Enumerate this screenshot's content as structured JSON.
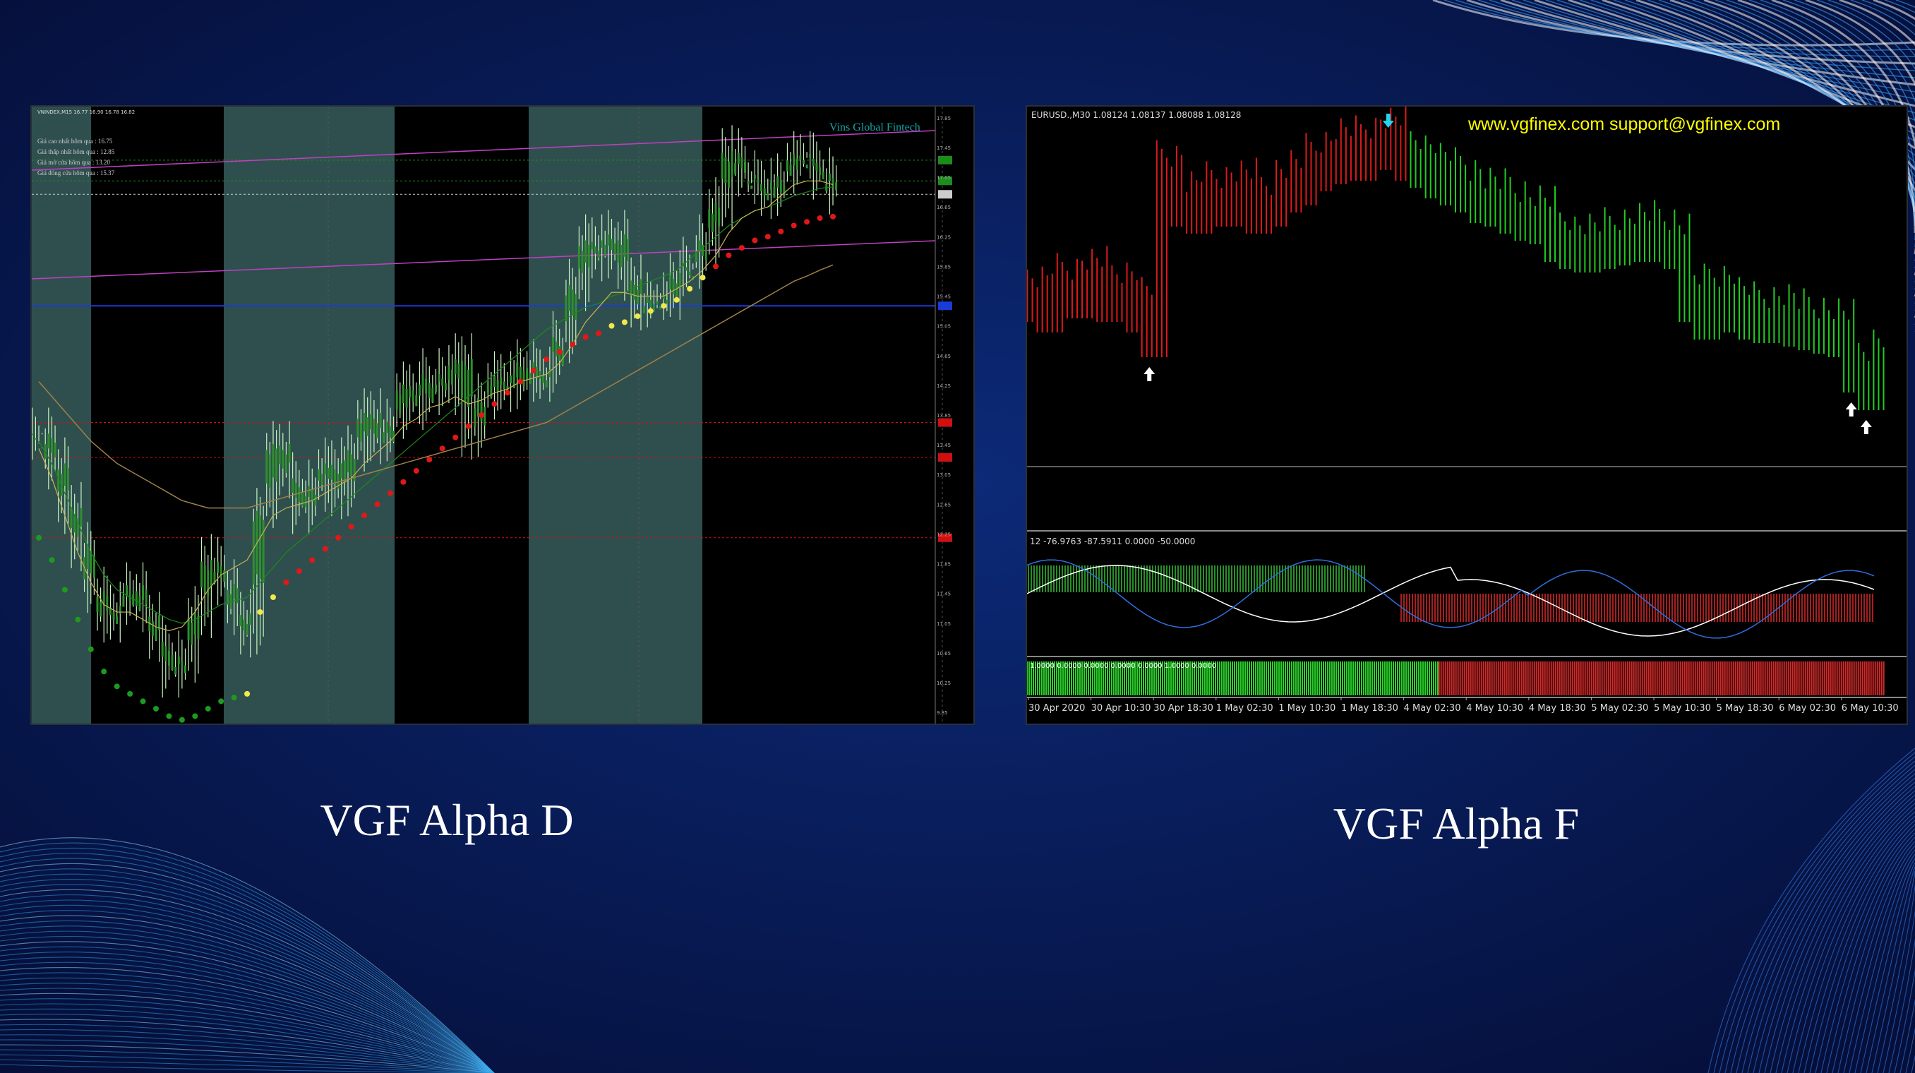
{
  "captions": {
    "left": "VGF Alpha D",
    "right": "VGF Alpha F"
  },
  "chart_data": [
    {
      "type": "line",
      "panel": "VGF Alpha D",
      "symbol_header": "VNINDEX,M15 16.77 16.90 16.78 16.82",
      "watermark": "Vins Global Fintech",
      "info_box": [
        "Giá cao nhất hôm qua : 16.75",
        "Giá thấp nhất hôm qua : 12.85",
        "Giá mở cửa hôm qua : 13.20",
        "Giá đóng cửa hôm qua : 15.37"
      ],
      "y_ticks": [
        "17.85",
        "17.45",
        "17.05",
        "16.65",
        "16.25",
        "15.85",
        "15.45",
        "15.05",
        "14.65",
        "14.25",
        "13.85",
        "13.45",
        "13.05",
        "12.65",
        "12.25",
        "11.85",
        "11.45",
        "11.05",
        "10.65",
        "10.25",
        "9.85"
      ],
      "ylim": [
        9.7,
        18.0
      ],
      "price_tags": [
        {
          "value": 17.28,
          "color": "#1c8c1c"
        },
        {
          "value": 17.0,
          "color": "#1c8c1c"
        },
        {
          "value": 16.82,
          "color": "#cccccc"
        },
        {
          "value": 15.32,
          "color": "#1a3bd6"
        },
        {
          "value": 13.75,
          "color": "#d01010"
        },
        {
          "value": 13.28,
          "color": "#d01010"
        },
        {
          "value": 12.2,
          "color": "#d01010"
        }
      ],
      "close_series": [
        13.6,
        13.2,
        12.6,
        12.1,
        11.5,
        11.1,
        11.3,
        11.6,
        11.2,
        10.8,
        10.4,
        10.6,
        11.2,
        11.9,
        11.6,
        11.2,
        10.9,
        12.6,
        13.5,
        13.0,
        12.6,
        12.9,
        13.2,
        12.8,
        13.4,
        13.9,
        13.5,
        13.8,
        14.3,
        14.0,
        14.4,
        14.2,
        14.6,
        13.6,
        14.1,
        14.4,
        14.2,
        14.6,
        14.3,
        14.5,
        14.9,
        15.6,
        16.2,
        16.0,
        16.3,
        15.7,
        15.3,
        15.5,
        15.4,
        15.8,
        15.9,
        16.2,
        16.7,
        17.4,
        17.1,
        17.0,
        16.8,
        17.1,
        17.4,
        17.3,
        17.1,
        16.9
      ],
      "indicator_lines": [
        {
          "name": "",
          "color": "#1a8a1a",
          "values": [
            13.5,
            13.2,
            12.8,
            12.4,
            12.0,
            11.7,
            11.5,
            11.4,
            11.3,
            11.2,
            11.1,
            11.05,
            11.1,
            11.2,
            11.3,
            11.35,
            11.4,
            11.6,
            11.8,
            12.0,
            12.15,
            12.3,
            12.45,
            12.6,
            12.75,
            12.9,
            13.05,
            13.2,
            13.35,
            13.5,
            13.65,
            13.8,
            13.95,
            14.1,
            14.25,
            14.4,
            14.55,
            14.7,
            14.85,
            15.0,
            15.1,
            15.2,
            15.3,
            15.35,
            15.45,
            15.5,
            15.58,
            15.65,
            15.72,
            15.8,
            15.95,
            16.1,
            16.25,
            16.4,
            16.5,
            16.6,
            16.65,
            16.72,
            16.8,
            16.85,
            16.9,
            16.92
          ]
        },
        {
          "name": "",
          "color": "#c9b255",
          "values": [
            13.4,
            13.0,
            12.5,
            12.0,
            11.6,
            11.3,
            11.2,
            11.2,
            11.1,
            11.0,
            10.95,
            11.0,
            11.2,
            11.5,
            11.7,
            11.8,
            11.9,
            12.2,
            12.5,
            12.6,
            12.65,
            12.7,
            12.8,
            12.9,
            13.0,
            13.2,
            13.35,
            13.5,
            13.7,
            13.8,
            13.95,
            14.0,
            14.1,
            14.0,
            14.05,
            14.15,
            14.2,
            14.3,
            14.35,
            14.4,
            14.55,
            14.8,
            15.1,
            15.3,
            15.5,
            15.5,
            15.45,
            15.45,
            15.45,
            15.55,
            15.65,
            15.8,
            16.0,
            16.3,
            16.5,
            16.6,
            16.65,
            16.8,
            16.95,
            17.0,
            17.0,
            16.95
          ]
        },
        {
          "name": "",
          "color": "#a0804a",
          "values": [
            14.3,
            14.1,
            13.9,
            13.7,
            13.5,
            13.35,
            13.2,
            13.1,
            13.0,
            12.9,
            12.8,
            12.7,
            12.65,
            12.6,
            12.6,
            12.6,
            12.6,
            12.65,
            12.7,
            12.75,
            12.8,
            12.85,
            12.9,
            12.95,
            13.0,
            13.05,
            13.1,
            13.15,
            13.2,
            13.25,
            13.3,
            13.35,
            13.4,
            13.45,
            13.5,
            13.55,
            13.6,
            13.65,
            13.7,
            13.75,
            13.85,
            13.95,
            14.05,
            14.15,
            14.25,
            14.35,
            14.45,
            14.55,
            14.65,
            14.75,
            14.85,
            14.95,
            15.05,
            15.15,
            15.25,
            15.35,
            15.45,
            15.55,
            15.65,
            15.72,
            15.8,
            15.87
          ]
        }
      ]
    },
    {
      "type": "line",
      "panel": "VGF Alpha F",
      "symbol_header": "EURUSD.,M30  1.08124 1.08137 1.08088 1.08128",
      "watermark": "www.vgfinex.com  support@vgfinex.com",
      "indicator_header": "12 -76.9763 -87.5911 0.0000 -50.0000",
      "histogram_header": "1.0000 0.0000 0.0000 0.0000 0.0000 1.0000 0.0000",
      "x_ticks": [
        "30 Apr 2020",
        "30 Apr 10:30",
        "30 Apr 18:30",
        "1 May 02:30",
        "1 May 10:30",
        "1 May 18:30",
        "4 May 02:30",
        "4 May 10:30",
        "4 May 18:30",
        "5 May 02:30",
        "5 May 10:30",
        "5 May 18:30",
        "6 May 02:30",
        "6 May 10:30"
      ],
      "close_series": [
        0.55,
        0.52,
        0.58,
        0.56,
        0.6,
        0.55,
        0.57,
        0.52,
        0.45,
        0.9,
        0.82,
        0.8,
        0.84,
        0.82,
        0.85,
        0.8,
        0.82,
        0.86,
        0.88,
        0.92,
        0.94,
        0.97,
        0.95,
        0.98,
        1.0,
        0.95,
        0.93,
        0.9,
        0.88,
        0.86,
        0.83,
        0.82,
        0.8,
        0.78,
        0.77,
        0.72,
        0.7,
        0.69,
        0.7,
        0.71,
        0.72,
        0.73,
        0.72,
        0.7,
        0.55,
        0.5,
        0.56,
        0.52,
        0.5,
        0.49,
        0.5,
        0.48,
        0.47,
        0.46,
        0.45,
        0.35,
        0.3,
        0.38
      ],
      "series_colors": {
        "up": "#dd1a1a",
        "down": "#22cc22",
        "switch_index": 25
      },
      "signals": [
        {
          "type": "buy-arrow",
          "index": 8
        },
        {
          "type": "sell-arrow",
          "index": 24
        },
        {
          "type": "buy-arrow",
          "index": 55
        },
        {
          "type": "buy-arrow",
          "index": 56
        }
      ],
      "histogram": [
        {
          "from": 0,
          "to": 0.48,
          "color": "#2bd12b"
        },
        {
          "from": 0.48,
          "to": 1.0,
          "color": "#d22a2a"
        }
      ]
    }
  ]
}
